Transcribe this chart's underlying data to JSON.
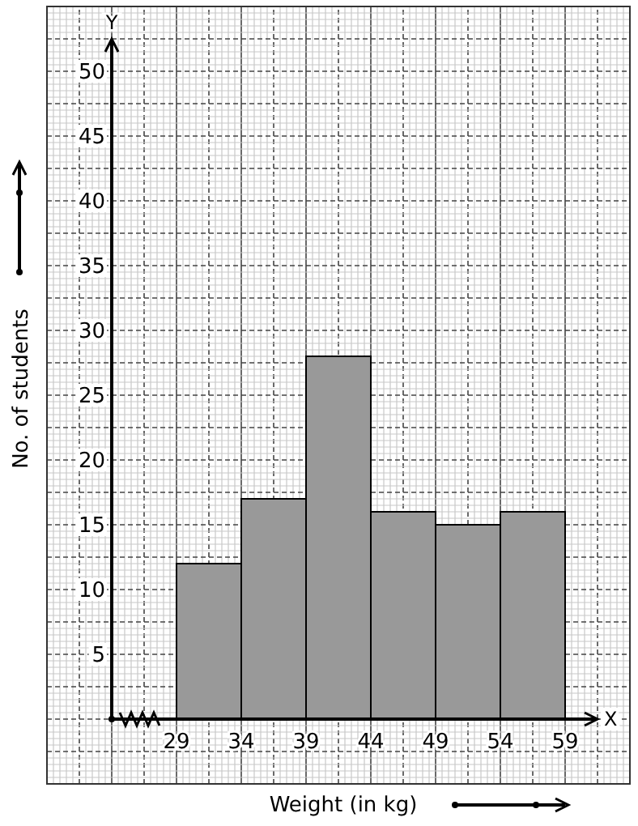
{
  "chart_data": {
    "type": "histogram",
    "xlabel": "Weight (in kg)",
    "ylabel": "No. of students",
    "bins": [
      29,
      34,
      39,
      44,
      49,
      54,
      59
    ],
    "values": [
      12,
      17,
      28,
      16,
      15,
      16
    ],
    "color": "#999999",
    "xlim": [
      24,
      61.5
    ],
    "xticks": [
      29,
      34,
      39,
      44,
      49,
      54,
      59
    ],
    "ylim": [
      0,
      52
    ],
    "yticks": [
      5,
      10,
      15,
      20,
      25,
      30,
      35,
      40,
      45,
      50
    ],
    "grid": true,
    "annotations": [
      "Y",
      "X"
    ]
  }
}
